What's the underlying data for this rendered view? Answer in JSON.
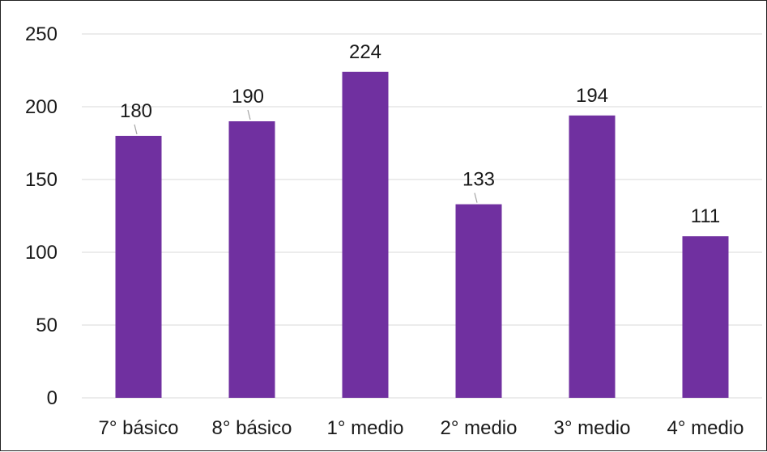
{
  "chart_data": {
    "type": "bar",
    "categories": [
      "7° básico",
      "8° básico",
      "1° medio",
      "2° medio",
      "3° medio",
      "4° medio"
    ],
    "values": [
      180,
      190,
      224,
      133,
      194,
      111
    ],
    "value_labels": [
      "180",
      "190",
      "224",
      "133",
      "194",
      "111"
    ],
    "ylim": [
      0,
      250
    ],
    "y_ticks": [
      0,
      50,
      100,
      150,
      200,
      250
    ],
    "y_tick_labels": [
      "0",
      "50",
      "100",
      "150",
      "200",
      "250"
    ],
    "grid": true,
    "legend": "none",
    "bar_color": "#7030a0",
    "grid_color": "#d9d9d9",
    "leader_line_color": "#a6a6a6"
  }
}
